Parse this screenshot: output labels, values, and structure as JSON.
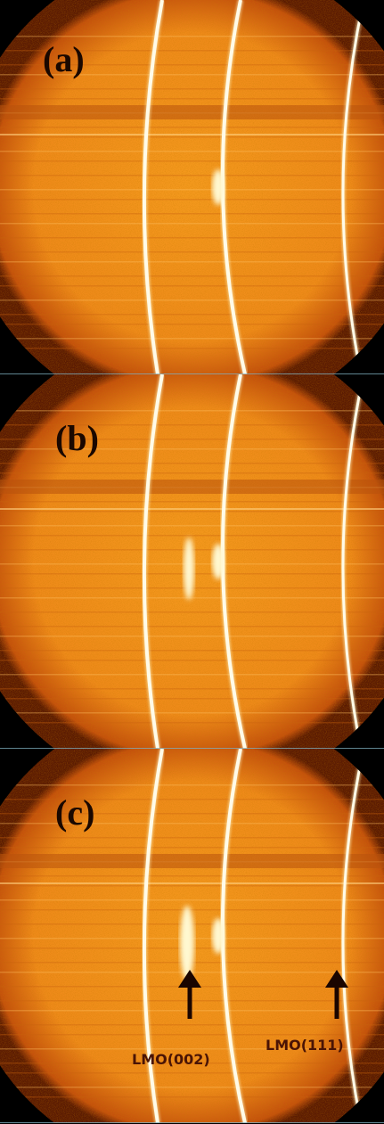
{
  "panels": [
    {
      "label": "(a)"
    },
    {
      "label": "(b)"
    },
    {
      "label": "(c)"
    }
  ],
  "annotations": [
    {
      "label": "LMO(002)"
    },
    {
      "label": "LMO(111)"
    }
  ]
}
